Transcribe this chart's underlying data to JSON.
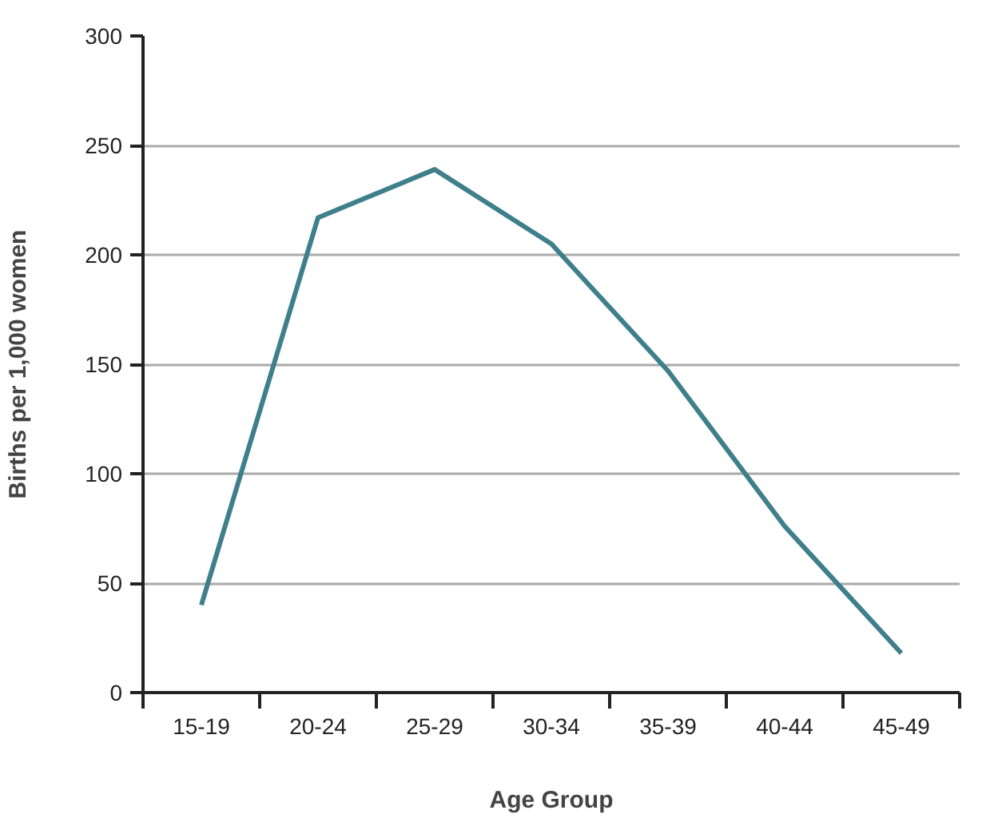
{
  "chart_data": {
    "type": "line",
    "xlabel": "Age Group",
    "ylabel": "Births per 1,000 women",
    "categories": [
      "15-19",
      "20-24",
      "25-29",
      "30-34",
      "35-39",
      "40-44",
      "45-49"
    ],
    "series": [
      {
        "color": "#3f7f8b",
        "values": [
          40,
          217,
          239,
          205,
          147,
          76,
          18
        ]
      }
    ],
    "ylim": [
      0,
      300
    ],
    "yticks": [
      0,
      50,
      100,
      150,
      200,
      250,
      300
    ],
    "grid": "y",
    "marker": "none",
    "line_style": "solid"
  }
}
